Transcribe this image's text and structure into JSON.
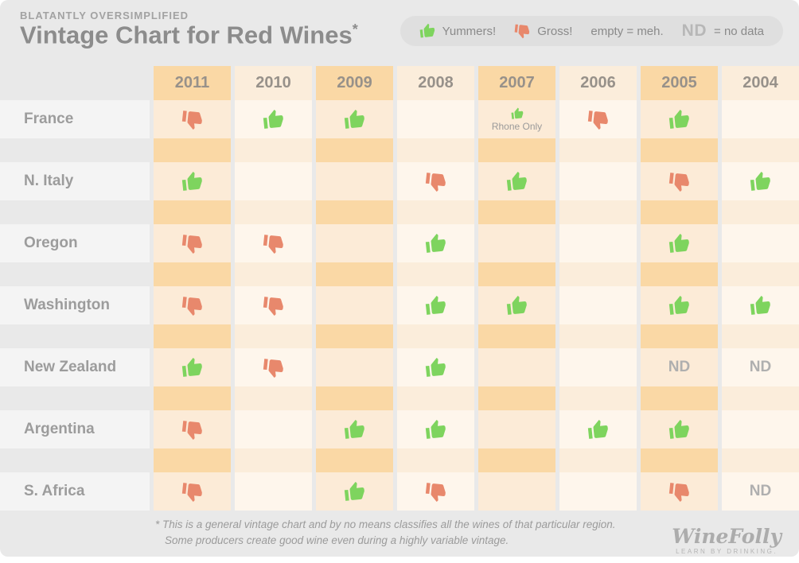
{
  "header": {
    "kicker": "BLATANTLY OVERSIMPLIFIED",
    "title": "Vintage Chart for Red Wines",
    "asterisk": "*"
  },
  "legend": {
    "yummers": "Yummers!",
    "gross": "Gross!",
    "meh": "empty = meh.",
    "nd_abbr": "ND",
    "nd_text": "= no data"
  },
  "colors": {
    "thumb_up": "#7ED45E",
    "thumb_down": "#E8886C",
    "column_strong_orange": "#FAD8A5",
    "column_light_orange": "#FCEBD7",
    "column_strong_cream": "#FBEDDB",
    "column_light_cream": "#FEF6EC",
    "page_background": "#E9E9E9",
    "label_cell_background": "#F4F4F4"
  },
  "chart_data": {
    "type": "table",
    "title": "Vintage Chart for Red Wines",
    "columns": [
      "2011",
      "2010",
      "2009",
      "2008",
      "2007",
      "2006",
      "2005",
      "2004"
    ],
    "rows": [
      "France",
      "N. Italy",
      "Oregon",
      "Washington",
      "New Zealand",
      "Argentina",
      "S. Africa"
    ],
    "value_legend": {
      "up": "Yummers! (good vintage)",
      "down": "Gross! (bad vintage)",
      "": "meh",
      "ND": "no data"
    },
    "values": [
      [
        "down",
        "up",
        "up",
        "",
        "up",
        "down",
        "up",
        ""
      ],
      [
        "up",
        "",
        "",
        "down",
        "up",
        "",
        "down",
        "up"
      ],
      [
        "down",
        "down",
        "",
        "up",
        "",
        "",
        "up",
        ""
      ],
      [
        "down",
        "down",
        "",
        "up",
        "up",
        "",
        "up",
        "up"
      ],
      [
        "up",
        "down",
        "",
        "up",
        "",
        "",
        "ND",
        "ND"
      ],
      [
        "down",
        "",
        "up",
        "up",
        "",
        "up",
        "up",
        ""
      ],
      [
        "down",
        "",
        "up",
        "down",
        "",
        "",
        "down",
        "ND"
      ]
    ],
    "annotations": [
      {
        "row": "France",
        "column": "2007",
        "text": "Rhone Only"
      }
    ]
  },
  "footer": {
    "note_line1": "* This is a general vintage chart and by no means classifies all the wines of that particular region.",
    "note_line2": "Some producers create good wine even during a highly variable vintage.",
    "logo": "WineFolly",
    "tagline": "LEARN BY DRINKING."
  }
}
